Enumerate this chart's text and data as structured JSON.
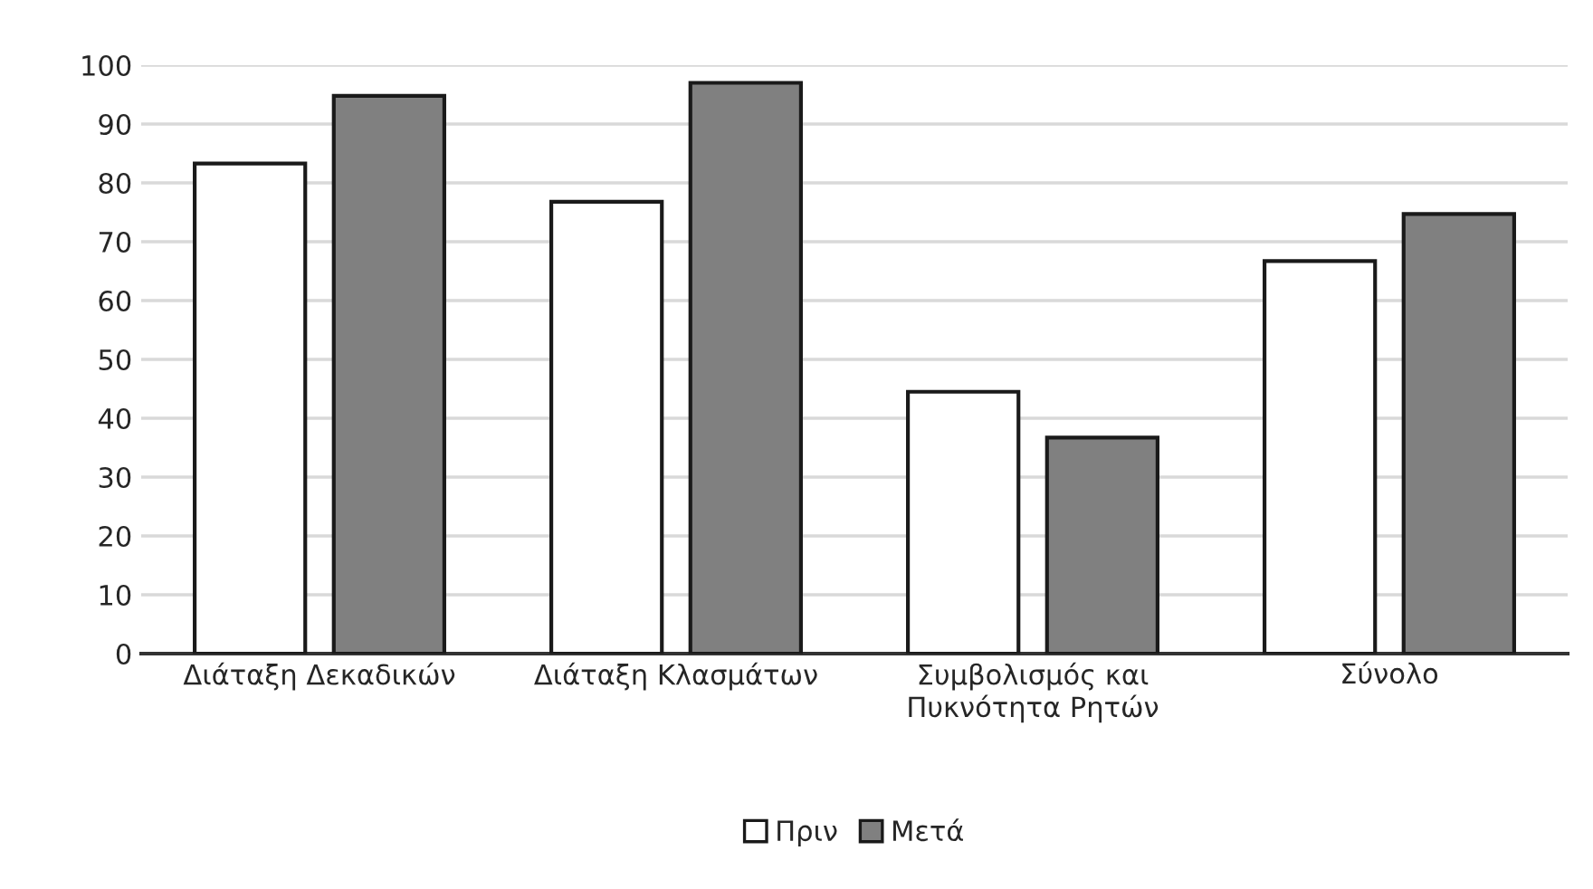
{
  "chart_data": {
    "type": "bar",
    "categories": [
      "Διάταξη Δεκαδικών",
      "Διάταξη Κλασμάτων",
      "Συμβολισμός και\nΠυκνότητα Ρητών",
      "Σύνολο"
    ],
    "series": [
      {
        "name": "Πριν",
        "color": "#ffffff",
        "values": [
          83.3,
          76.8,
          44.5,
          66.7
        ]
      },
      {
        "name": "Μετά",
        "color": "#808080",
        "values": [
          94.8,
          97.0,
          36.7,
          74.7
        ]
      }
    ],
    "ylim": [
      0,
      100
    ],
    "yticks": [
      0,
      10,
      20,
      30,
      40,
      50,
      60,
      70,
      80,
      90,
      100
    ],
    "grid": "y",
    "legend": "bottom"
  }
}
